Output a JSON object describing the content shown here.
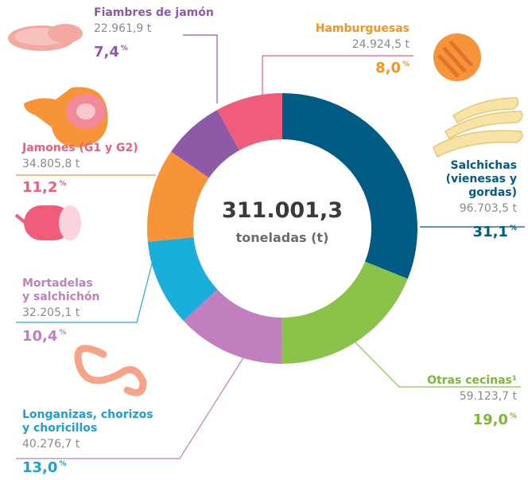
{
  "chart_data": {
    "type": "donut",
    "center_value": "311.001,3",
    "center_unit": "toneladas (t)",
    "categories": [
      "Salchichas\n(vienesas y\ngordas)",
      "Otras cecinas¹",
      "Longanizas, chorizos\ny choricillos",
      "Mortadelas\ny salchichón",
      "Jamones (G1 y G2)",
      "Fiambres de jamón",
      "Hamburguesas"
    ],
    "values": [
      31.1,
      19.0,
      13.0,
      10.4,
      11.2,
      7.4,
      8.0
    ],
    "value_labels": [
      "31,1",
      "19,0",
      "13,0",
      "10,4",
      "11,2",
      "7,4",
      "8,0"
    ],
    "percent_sign": "%",
    "tonnes": [
      "96.703,5 t",
      "59.123,7 t",
      "40.276,7  t",
      "32.205,1 t",
      "34.805,8 t",
      "22.961,9 t",
      "24.924,5 t"
    ],
    "colors": [
      "#005b85",
      "#8bc34a",
      "#c17fc0",
      "#1aaedb",
      "#f7943a",
      "#8e5aa8",
      "#ef5d7a"
    ],
    "label_colors": [
      "#005b85",
      "#7cb832",
      "#1a9fd6",
      "#c17fc0",
      "#ef5d7a",
      "#8e5aa8",
      "#f7941d"
    ]
  }
}
